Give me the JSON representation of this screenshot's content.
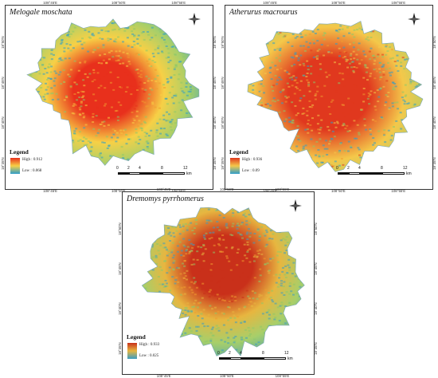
{
  "panels": [
    {
      "title": "Melogale moschata",
      "legend": {
        "title": "Legend",
        "high": "High : 0.912",
        "low": "Low : 0.068"
      },
      "ticks_top": [
        "108°45'E",
        "108°50'E",
        "108°55'E"
      ],
      "ticks_bottom": [
        "108°45'E",
        "108°50'E",
        "108°55'E"
      ],
      "ticks_left": [
        "18°50'N",
        "18°45'N",
        "18°40'N",
        "18°35'N"
      ],
      "ticks_right": [
        "18°50'N",
        "18°45'N",
        "18°40'N",
        "18°35'N"
      ],
      "scale": {
        "labels": [
          "0",
          "2",
          "4",
          "8",
          "12"
        ],
        "unit": "km"
      },
      "hotspot": "center",
      "colors": {
        "high": "#e8301c",
        "mid": "#f7d046",
        "low": "#2e9ec9"
      }
    },
    {
      "title": "Atherurus macrourus",
      "legend": {
        "title": "Legend",
        "high": "High : 0.936",
        "low": "Low : 0.09"
      },
      "ticks_top": [
        "108°45'E",
        "108°50'E",
        "108°55'E"
      ],
      "ticks_bottom": [
        "108°45'E",
        "108°50'E",
        "108°55'E"
      ],
      "ticks_left": [
        "18°50'N",
        "18°45'N",
        "18°40'N",
        "18°35'N"
      ],
      "ticks_right": [
        "18°50'N",
        "18°45'N",
        "18°40'N",
        "18°35'N"
      ],
      "scale": {
        "labels": [
          "0",
          "2",
          "4",
          "8",
          "12"
        ],
        "unit": "km"
      },
      "hotspot": "diffuse",
      "colors": {
        "high": "#e0381e",
        "mid": "#f4c84a",
        "low": "#2e9ec9"
      }
    },
    {
      "title": "Dremomys pyrrhomerus",
      "legend": {
        "title": "Legend",
        "high": "High : 0.933",
        "low": "Low : 0.025"
      },
      "ticks_top": [
        "108°45'E",
        "108°50'E",
        "108°55'E"
      ],
      "ticks_bottom": [
        "108°45'E",
        "108°50'E",
        "108°55'E"
      ],
      "ticks_left": [
        "18°50'N",
        "18°45'N",
        "18°40'N",
        "18°35'N"
      ],
      "ticks_right": [
        "18°50'N",
        "18°45'N",
        "18°40'N",
        "18°35'N"
      ],
      "scale": {
        "labels": [
          "0",
          "2",
          "4",
          "8",
          "12"
        ],
        "unit": "km"
      },
      "hotspot": "north-center",
      "colors": {
        "high": "#c9301a",
        "mid": "#e7b640",
        "low": "#3a9cc2"
      }
    }
  ],
  "compass_label": "N"
}
